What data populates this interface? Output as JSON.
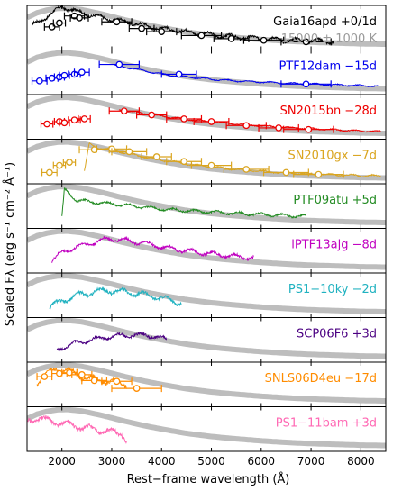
{
  "chart_data": {
    "type": "line",
    "xlabel": "Rest−frame wavelength (Å)",
    "ylabel": "Scaled Fλ (erg s⁻¹ cm⁻² Å⁻¹)",
    "xlim": [
      1300,
      8500
    ],
    "xticks": [
      2000,
      3000,
      4000,
      5000,
      6000,
      7000,
      8000
    ],
    "xtick_labels": [
      "2000",
      "3000",
      "4000",
      "5000",
      "6000",
      "7000",
      "8000"
    ],
    "blackbody_label": "15000 ± 1000 K",
    "blackbody_color": "#bdbdbd",
    "blackbody_x": [
      1300,
      1500,
      1700,
      1900,
      2100,
      2400,
      2800,
      3200,
      3600,
      4000,
      4500,
      5000,
      5500,
      6000,
      6500,
      7000,
      7500,
      8000,
      8500
    ],
    "blackbody_y": [
      0.76,
      0.88,
      0.95,
      0.99,
      1.0,
      0.96,
      0.85,
      0.72,
      0.6,
      0.5,
      0.39,
      0.31,
      0.25,
      0.2,
      0.16,
      0.13,
      0.11,
      0.09,
      0.08
    ],
    "panels": [
      {
        "name": "Gaia16apd +0/1d",
        "color": "#000000",
        "spec_range": [
          1400,
          7450
        ],
        "spec_amp": 1.0,
        "spec_x": [
          1400,
          1600,
          1800,
          2000,
          2200,
          2400,
          2600,
          2800,
          3000,
          3400,
          3800,
          4200,
          4600,
          5000,
          5500,
          6000,
          6500,
          7000,
          7450
        ],
        "spec_y": [
          0.55,
          0.72,
          0.85,
          1.05,
          0.95,
          0.88,
          0.82,
          0.75,
          0.72,
          0.62,
          0.52,
          0.45,
          0.38,
          0.32,
          0.26,
          0.22,
          0.19,
          0.17,
          0.15
        ],
        "phot_x": [
          1800,
          1950,
          2250,
          2350,
          3100,
          3600,
          4000,
          4800,
          5400,
          6050,
          6900
        ],
        "phot_y": [
          0.52,
          0.62,
          0.8,
          0.75,
          0.65,
          0.48,
          0.4,
          0.3,
          0.22,
          0.18,
          0.14
        ],
        "phot_err": [
          150,
          120,
          200,
          180,
          300,
          250,
          300,
          400,
          350,
          400,
          500
        ]
      },
      {
        "name": "PTF12dam −15d",
        "color": "#0000ee",
        "spec_range": [
          3050,
          8350
        ],
        "spec_amp": 0.35,
        "spec_x": [
          3050,
          3400,
          3800,
          4200,
          4600,
          5000,
          5500,
          6000,
          6500,
          7000,
          7500,
          8000,
          8350
        ],
        "spec_y": [
          0.68,
          0.6,
          0.5,
          0.42,
          0.37,
          0.32,
          0.28,
          0.25,
          0.22,
          0.2,
          0.18,
          0.16,
          0.15
        ],
        "phot_x": [
          1550,
          1800,
          1950,
          2050,
          2250,
          2400,
          3150,
          4350,
          6900
        ],
        "phot_y": [
          0.28,
          0.35,
          0.38,
          0.42,
          0.45,
          0.5,
          0.7,
          0.45,
          0.2
        ],
        "phot_err": [
          150,
          120,
          100,
          100,
          120,
          150,
          400,
          350,
          500
        ]
      },
      {
        "name": "SN2015bn −28d",
        "color": "#ee0000",
        "spec_range": [
          3150,
          8400
        ],
        "spec_amp": 0.35,
        "spec_x": [
          3150,
          3600,
          4000,
          4500,
          5000,
          5500,
          6000,
          6500,
          7000,
          7500,
          8000,
          8400
        ],
        "spec_y": [
          0.68,
          0.6,
          0.52,
          0.44,
          0.37,
          0.32,
          0.27,
          0.23,
          0.2,
          0.17,
          0.14,
          0.13
        ],
        "phot_x": [
          1700,
          1950,
          2050,
          2250,
          2450,
          3250,
          3800,
          4450,
          5000,
          5700,
          6350,
          6950
        ],
        "phot_y": [
          0.32,
          0.38,
          0.35,
          0.42,
          0.45,
          0.65,
          0.55,
          0.45,
          0.38,
          0.28,
          0.22,
          0.18
        ],
        "phot_err": [
          120,
          100,
          100,
          120,
          120,
          300,
          300,
          350,
          350,
          400,
          400,
          500
        ]
      },
      {
        "name": "SN2010gx −7d",
        "color": "#daa520",
        "spec_range": [
          2450,
          8400
        ],
        "spec_amp": 0.45,
        "spec_x": [
          2450,
          2550,
          2700,
          3000,
          3400,
          3800,
          4200,
          4600,
          5000,
          5500,
          6000,
          6500,
          7000,
          7500,
          8000,
          8400
        ],
        "spec_y": [
          0.25,
          0.95,
          0.85,
          0.8,
          0.68,
          0.58,
          0.5,
          0.42,
          0.36,
          0.3,
          0.25,
          0.21,
          0.18,
          0.16,
          0.14,
          0.13
        ],
        "phot_x": [
          1750,
          1950,
          2150,
          2650,
          3000,
          3350,
          3900,
          4450,
          5000,
          5700,
          6500,
          7150
        ],
        "phot_y": [
          0.22,
          0.4,
          0.48,
          0.8,
          0.82,
          0.75,
          0.62,
          0.5,
          0.4,
          0.3,
          0.22,
          0.17
        ],
        "phot_err": [
          150,
          120,
          120,
          300,
          300,
          350,
          300,
          350,
          400,
          450,
          450,
          500
        ]
      },
      {
        "name": "PTF09atu +5d",
        "color": "#228b22",
        "spec_range": [
          2000,
          6900
        ],
        "spec_amp": 0.7,
        "spec_x": [
          2000,
          2050,
          2300,
          2800,
          3300,
          3800,
          4300,
          4800,
          5300,
          5800,
          6300,
          6900
        ],
        "spec_y": [
          0.2,
          0.92,
          0.65,
          0.58,
          0.52,
          0.45,
          0.4,
          0.36,
          0.33,
          0.3,
          0.27,
          0.24
        ],
        "phot_x": [],
        "phot_y": [],
        "phot_err": []
      },
      {
        "name": "iPTF13ajg −8d",
        "color": "#c000c0",
        "spec_range": [
          1800,
          5850
        ],
        "spec_amp": 1.0,
        "spec_x": [
          1800,
          2000,
          2300,
          2600,
          2900,
          3200,
          3500,
          3800,
          4200,
          4600,
          5000,
          5400,
          5850
        ],
        "spec_y": [
          0.25,
          0.45,
          0.6,
          0.7,
          0.8,
          0.78,
          0.72,
          0.65,
          0.55,
          0.48,
          0.42,
          0.36,
          0.32
        ],
        "phot_x": [],
        "phot_y": [],
        "phot_err": []
      },
      {
        "name": "PS1−10ky −2d",
        "color": "#20b2c0",
        "spec_range": [
          1750,
          4400
        ],
        "spec_amp": 1.3,
        "spec_x": [
          1750,
          2000,
          2300,
          2600,
          2900,
          3200,
          3500,
          3800,
          4100,
          4400
        ],
        "spec_y": [
          0.2,
          0.35,
          0.5,
          0.58,
          0.62,
          0.6,
          0.55,
          0.48,
          0.4,
          0.3
        ],
        "phot_x": [],
        "phot_y": [],
        "phot_err": []
      },
      {
        "name": "SCP06F6 +3d",
        "color": "#4b0082",
        "spec_range": [
          1900,
          4100
        ],
        "spec_amp": 1.0,
        "spec_x": [
          1900,
          2200,
          2500,
          2800,
          3100,
          3400,
          3700,
          4000,
          4100
        ],
        "spec_y": [
          0.25,
          0.4,
          0.48,
          0.55,
          0.6,
          0.62,
          0.62,
          0.55,
          0.5
        ],
        "phot_x": [],
        "phot_y": [],
        "phot_err": []
      },
      {
        "name": "SNLS06D4eu −17d",
        "color": "#ff8c00",
        "spec_range": [
          1500,
          3300
        ],
        "spec_amp": 1.5,
        "spec_x": [
          1500,
          1700,
          1900,
          2100,
          2300,
          2500,
          2700,
          2900,
          3100,
          3300
        ],
        "spec_y": [
          0.55,
          0.8,
          0.9,
          0.85,
          0.75,
          0.68,
          0.62,
          0.58,
          0.55,
          0.5
        ],
        "phot_x": [
          1650,
          1950,
          2150,
          2400,
          2650,
          3100,
          3500
        ],
        "phot_y": [
          0.7,
          0.78,
          0.8,
          0.75,
          0.6,
          0.58,
          0.4
        ],
        "phot_err": [
          150,
          150,
          150,
          200,
          250,
          300,
          500
        ]
      },
      {
        "name": "PS1−11bam +3d",
        "color": "#ff69b4",
        "spec_range": [
          1300,
          3300
        ],
        "spec_amp": 1.5,
        "spec_x": [
          1300,
          1500,
          1800,
          2100,
          2400,
          2700,
          3000,
          3200,
          3300
        ],
        "spec_y": [
          0.7,
          0.78,
          0.7,
          0.62,
          0.55,
          0.48,
          0.42,
          0.4,
          0.2
        ],
        "phot_x": [],
        "phot_y": [],
        "phot_err": []
      }
    ]
  }
}
